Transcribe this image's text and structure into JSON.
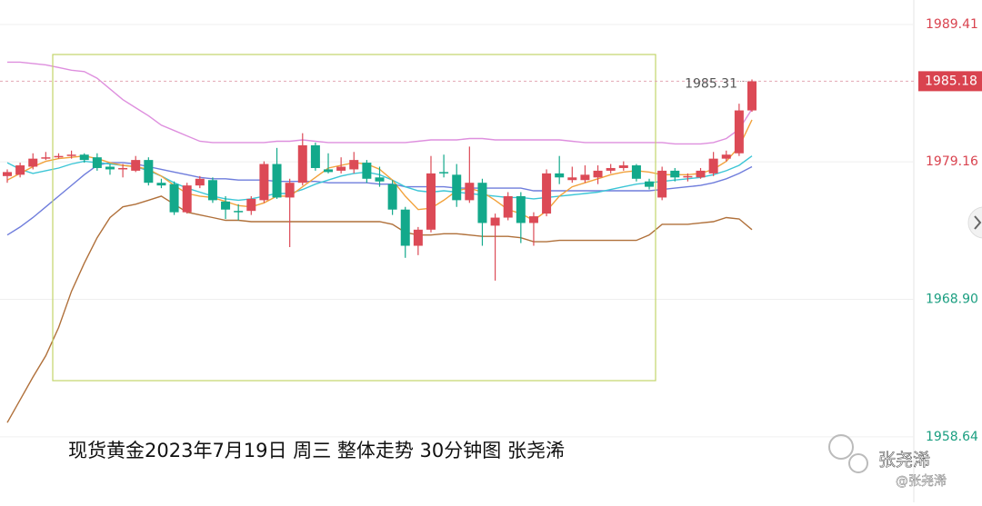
{
  "chart_data": {
    "type": "candlestick",
    "title": "现货黄金2023年7月19日 周三 整体走势 30分钟图  张尧浠",
    "watermark": [
      "张尧浠",
      "@张尧浠"
    ],
    "categories": [
      null,
      null,
      null,
      null,
      null,
      null,
      null,
      null,
      null,
      null,
      null,
      null,
      null,
      null,
      null,
      null,
      null,
      null,
      null,
      null,
      null,
      null,
      null,
      null,
      null,
      null,
      null,
      null,
      null,
      null,
      null,
      null,
      null,
      null,
      null,
      null,
      null,
      null,
      null,
      null,
      null,
      null,
      null,
      null,
      null,
      null,
      null,
      null,
      null,
      null,
      null,
      null,
      null,
      null,
      null,
      null,
      null,
      null,
      null
    ],
    "open": [
      1978.1,
      1978.2,
      1978.8,
      1979.5,
      1979.5,
      1979.6,
      1979.7,
      1979.5,
      1978.8,
      1978.7,
      1978.5,
      1979.3,
      1977.6,
      1977.5,
      1975.4,
      1977.4,
      1977.8,
      1976.2,
      1975.5,
      1975.5,
      1976.3,
      1979.0,
      1976.5,
      1977.6,
      1980.4,
      1978.6,
      1978.5,
      1978.6,
      1979.1,
      1978.0,
      1977.5,
      1975.6,
      1972.9,
      1974.1,
      1978.4,
      1978.2,
      1976.3,
      1977.6,
      1974.4,
      1975.0,
      1976.6,
      1974.6,
      1975.3,
      1978.3,
      1977.8,
      1977.8,
      1978.0,
      1978.5,
      1978.7,
      1978.9,
      1977.7,
      1976.5,
      1978.5,
      1978.0,
      1978.0,
      1978.3,
      1979.4,
      1979.8,
      1983.0
    ],
    "high": [
      1978.6,
      1979.1,
      1979.8,
      1979.9,
      1979.8,
      1980.0,
      1979.8,
      1979.8,
      1979.0,
      1979.0,
      1979.6,
      1979.5,
      1977.9,
      1977.7,
      1977.6,
      1978.1,
      1978.0,
      1976.6,
      1976.0,
      1976.6,
      1979.2,
      1980.2,
      1977.9,
      1981.3,
      1980.6,
      1979.8,
      1979.5,
      1979.9,
      1979.3,
      1978.8,
      1977.8,
      1975.8,
      1974.3,
      1979.6,
      1979.7,
      1979.0,
      1980.3,
      1977.9,
      1975.3,
      1976.9,
      1976.9,
      1975.4,
      1978.6,
      1979.6,
      1978.8,
      1978.9,
      1978.9,
      1979.0,
      1979.2,
      1979.0,
      1977.9,
      1978.8,
      1978.7,
      1978.3,
      1978.7,
      1979.9,
      1980.0,
      1983.5,
      1985.31
    ],
    "low": [
      1977.6,
      1978.0,
      1978.6,
      1979.3,
      1979.4,
      1979.4,
      1979.1,
      1978.5,
      1978.2,
      1978.0,
      1978.4,
      1977.4,
      1977.2,
      1975.2,
      1975.3,
      1977.2,
      1976.1,
      1974.9,
      1974.8,
      1975.2,
      1976.1,
      1976.4,
      1972.8,
      1977.4,
      1978.5,
      1978.3,
      1978.3,
      1978.3,
      1977.6,
      1977.3,
      1975.2,
      1972.0,
      1972.2,
      1973.9,
      1978.0,
      1975.8,
      1976.1,
      1972.9,
      1970.3,
      1974.8,
      1973.1,
      1972.9,
      1975.1,
      1977.5,
      1977.6,
      1977.6,
      1977.5,
      1978.3,
      1978.5,
      1977.7,
      1977.1,
      1976.3,
      1977.7,
      1977.7,
      1977.9,
      1978.1,
      1979.2,
      1979.6,
      1982.9
    ],
    "close": [
      1978.4,
      1978.9,
      1979.4,
      1979.5,
      1979.6,
      1979.7,
      1979.3,
      1978.7,
      1978.6,
      1978.7,
      1979.3,
      1977.6,
      1977.4,
      1975.4,
      1977.4,
      1977.9,
      1976.3,
      1975.6,
      1975.4,
      1976.4,
      1979.0,
      1976.5,
      1977.6,
      1980.4,
      1978.7,
      1978.4,
      1978.8,
      1979.3,
      1977.9,
      1977.7,
      1975.6,
      1972.9,
      1974.1,
      1978.3,
      1978.3,
      1976.3,
      1977.6,
      1974.6,
      1975.0,
      1976.6,
      1974.6,
      1975.1,
      1978.3,
      1978.0,
      1978.0,
      1978.2,
      1978.5,
      1978.7,
      1978.9,
      1977.9,
      1977.3,
      1978.5,
      1978.0,
      1978.1,
      1978.5,
      1979.4,
      1979.7,
      1983.0,
      1985.18
    ],
    "up_color": "#dc4a56",
    "down_color": "#13a98b",
    "lines": [
      {
        "color": "#de8fde",
        "values": [
          1986.6,
          1986.6,
          1986.5,
          1986.4,
          1986.2,
          1986.0,
          1985.9,
          1985.4,
          1984.6,
          1983.8,
          1983.2,
          1982.6,
          1981.9,
          1981.5,
          1981.1,
          1980.7,
          1980.6,
          1980.6,
          1980.6,
          1980.6,
          1980.6,
          1980.7,
          1980.7,
          1980.8,
          1980.7,
          1980.6,
          1980.6,
          1980.6,
          1980.6,
          1980.6,
          1980.6,
          1980.6,
          1980.7,
          1980.8,
          1980.8,
          1980.8,
          1980.9,
          1980.9,
          1980.8,
          1980.8,
          1980.8,
          1980.8,
          1980.8,
          1980.8,
          1980.7,
          1980.6,
          1980.6,
          1980.6,
          1980.6,
          1980.6,
          1980.6,
          1980.6,
          1980.5,
          1980.5,
          1980.5,
          1980.6,
          1980.9,
          1981.6,
          1983.1
        ]
      },
      {
        "color": "#b0703a",
        "values": [
          1959.7,
          1961.4,
          1963.1,
          1964.7,
          1966.8,
          1969.5,
          1971.6,
          1973.5,
          1975.0,
          1975.8,
          1976.0,
          1976.3,
          1976.6,
          1976.0,
          1975.4,
          1975.2,
          1975.0,
          1974.8,
          1974.8,
          1974.7,
          1974.7,
          1974.7,
          1974.7,
          1974.7,
          1974.7,
          1974.7,
          1974.7,
          1974.7,
          1974.7,
          1974.7,
          1974.5,
          1973.9,
          1973.7,
          1973.7,
          1973.8,
          1973.8,
          1973.7,
          1973.6,
          1973.6,
          1973.6,
          1973.5,
          1973.2,
          1973.2,
          1973.3,
          1973.3,
          1973.3,
          1973.3,
          1973.3,
          1973.3,
          1973.3,
          1973.7,
          1974.5,
          1974.5,
          1974.5,
          1974.6,
          1974.7,
          1975.0,
          1974.9,
          1974.1
        ]
      },
      {
        "color": "#6f7ddc",
        "values": [
          1973.7,
          1974.3,
          1975.0,
          1975.8,
          1976.6,
          1977.4,
          1978.2,
          1978.9,
          1979.1,
          1979.1,
          1979.0,
          1978.8,
          1978.6,
          1978.4,
          1978.2,
          1978.0,
          1977.9,
          1977.9,
          1977.8,
          1977.8,
          1977.8,
          1977.7,
          1977.7,
          1977.7,
          1977.7,
          1977.6,
          1977.6,
          1977.6,
          1977.6,
          1977.5,
          1977.5,
          1977.3,
          1977.3,
          1977.3,
          1977.3,
          1977.2,
          1977.2,
          1977.2,
          1977.2,
          1977.2,
          1977.2,
          1977.0,
          1977.0,
          1977.0,
          1977.0,
          1977.0,
          1977.0,
          1977.0,
          1977.0,
          1977.0,
          1977.0,
          1977.1,
          1977.2,
          1977.3,
          1977.4,
          1977.6,
          1977.9,
          1978.3,
          1978.8
        ]
      },
      {
        "color": "#3cc6d6",
        "values": [
          1979.1,
          1978.6,
          1978.3,
          1978.5,
          1978.7,
          1979.0,
          1979.2,
          1979.1,
          1979.0,
          1978.9,
          1978.8,
          1978.5,
          1978.1,
          1977.6,
          1977.2,
          1976.9,
          1976.6,
          1976.4,
          1976.3,
          1976.4,
          1976.6,
          1976.8,
          1976.8,
          1977.1,
          1977.5,
          1977.8,
          1978.1,
          1978.3,
          1978.4,
          1978.2,
          1977.8,
          1977.3,
          1977.0,
          1976.9,
          1977.0,
          1976.9,
          1976.8,
          1976.7,
          1976.6,
          1976.5,
          1976.5,
          1976.4,
          1976.5,
          1976.6,
          1976.7,
          1976.8,
          1976.9,
          1977.1,
          1977.3,
          1977.5,
          1977.6,
          1977.7,
          1977.8,
          1977.9,
          1978.0,
          1978.2,
          1978.5,
          1978.9,
          1979.6
        ]
      },
      {
        "color": "#f2a23c",
        "values": [
          1977.8,
          1978.3,
          1978.8,
          1979.2,
          1979.4,
          1979.5,
          1979.6,
          1979.4,
          1979.1,
          1978.9,
          1978.8,
          1978.6,
          1978.1,
          1977.4,
          1976.8,
          1976.6,
          1976.5,
          1976.2,
          1975.9,
          1975.8,
          1976.1,
          1976.6,
          1976.6,
          1977.3,
          1978.0,
          1978.7,
          1978.9,
          1979.1,
          1979.0,
          1978.6,
          1977.8,
          1976.6,
          1975.6,
          1975.7,
          1976.3,
          1977.0,
          1977.2,
          1976.9,
          1976.3,
          1975.6,
          1975.3,
          1974.8,
          1975.5,
          1976.6,
          1977.3,
          1977.6,
          1977.9,
          1978.2,
          1978.4,
          1978.5,
          1978.4,
          1978.2,
          1978.2,
          1978.2,
          1978.3,
          1978.6,
          1979.2,
          1980.3,
          1982.3
        ]
      }
    ],
    "last_price": 1985.18,
    "high_label": 1985.31,
    "ylim": [
      1953.75,
      1991.24
    ],
    "yticks": [
      1989.41,
      1979.16,
      {
        "value": 1968.9,
        "label": "1968.90"
      },
      1958.64
    ],
    "ytick_colors": [
      "#d9434f",
      "#d9434f",
      "#1a9e80",
      "#1a9e80"
    ],
    "grid": true
  }
}
